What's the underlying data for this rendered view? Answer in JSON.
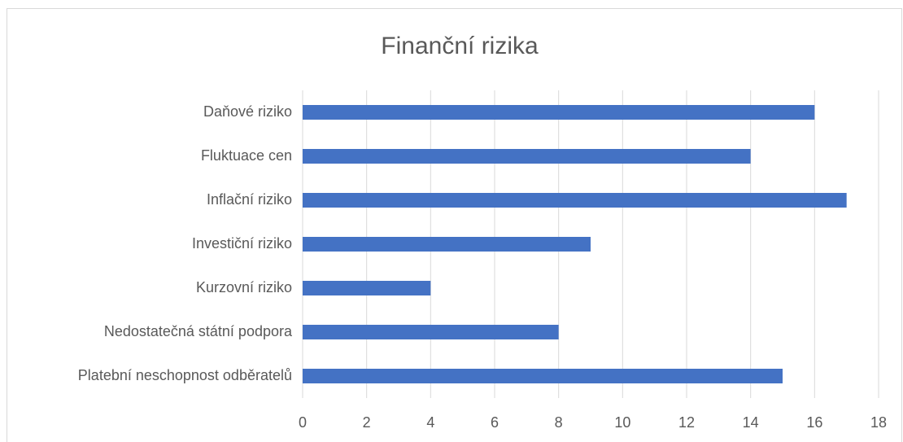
{
  "chart_data": {
    "type": "bar",
    "orientation": "horizontal",
    "title": "Finanční rizika",
    "categories": [
      "Daňové riziko",
      "Fluktuace cen",
      "Inflační riziko",
      "Investiční riziko",
      "Kurzovní riziko",
      "Nedostatečná státní podpora",
      "Platební neschopnost odběratelů"
    ],
    "values": [
      16,
      14,
      17,
      9,
      4,
      8,
      15
    ],
    "color": "#4472c4",
    "xlim": [
      0,
      18
    ],
    "xticks": [
      0,
      2,
      4,
      6,
      8,
      10,
      12,
      14,
      16,
      18
    ],
    "grid": true
  }
}
